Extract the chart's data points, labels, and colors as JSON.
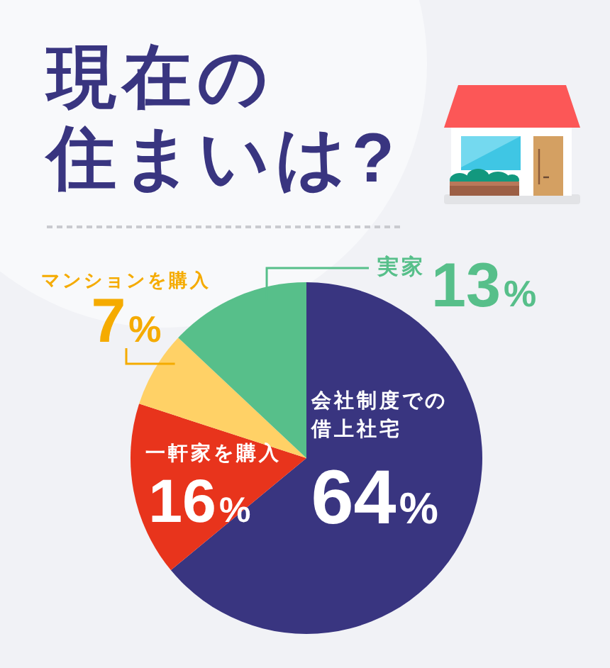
{
  "chart_data": {
    "type": "pie",
    "title": "現在の住まいは?",
    "categories": [
      "会社制度での借上社宅",
      "一軒家を購入",
      "マンションを購入",
      "実家"
    ],
    "values": [
      64,
      16,
      7,
      13
    ],
    "value_labels": [
      "64%",
      "16%",
      "7%",
      "13%"
    ],
    "colors": [
      "#393580",
      "#e8341c",
      "#ffd166",
      "#57bf8a"
    ]
  }
}
